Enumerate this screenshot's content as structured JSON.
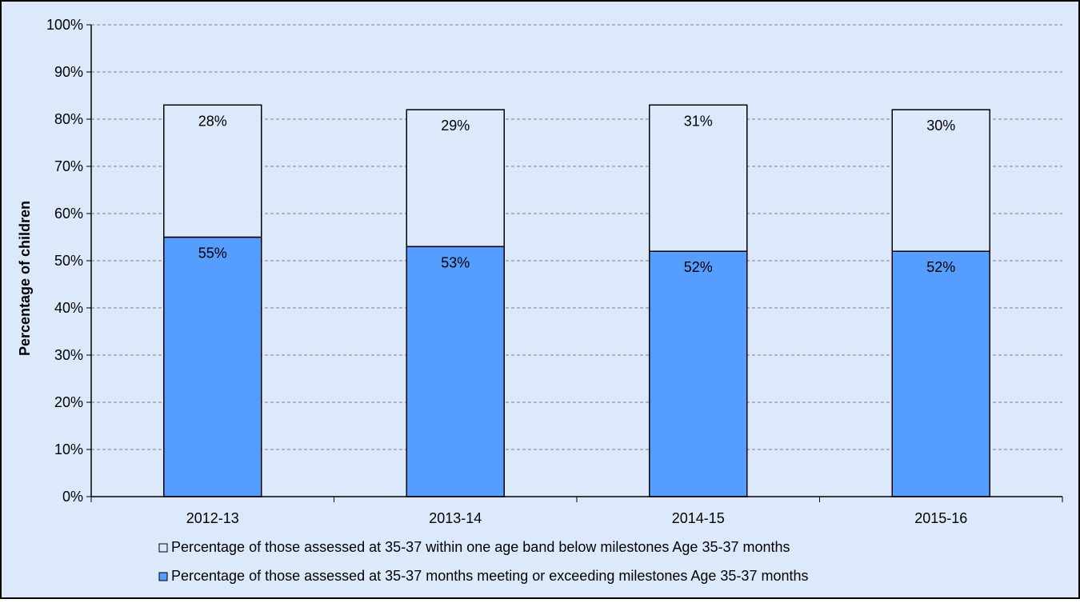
{
  "chart_data": {
    "type": "bar",
    "stacked": true,
    "categories": [
      "2012-13",
      "2013-14",
      "2014-15",
      "2015-16"
    ],
    "series": [
      {
        "name": "Percentage of those assessed at 35-37 months meeting or exceeding milestones Age 35-37 months",
        "values": [
          55,
          53,
          52,
          52
        ],
        "labels": [
          "55%",
          "53%",
          "52%",
          "52%"
        ],
        "color": "#559DFF"
      },
      {
        "name": "Percentage of those assessed at 35-37 within one age band below milestones Age 35-37 months",
        "values": [
          28,
          29,
          31,
          30
        ],
        "labels": [
          "28%",
          "29%",
          "31%",
          "30%"
        ],
        "color": "#DCE9FB"
      }
    ],
    "ylabel": "Percentage of children",
    "ylim": [
      0,
      100
    ],
    "yticks": [
      "0%",
      "10%",
      "20%",
      "30%",
      "40%",
      "50%",
      "60%",
      "70%",
      "80%",
      "90%",
      "100%"
    ],
    "grid": true,
    "legend_position": "bottom",
    "background": "#DCE9FB"
  }
}
